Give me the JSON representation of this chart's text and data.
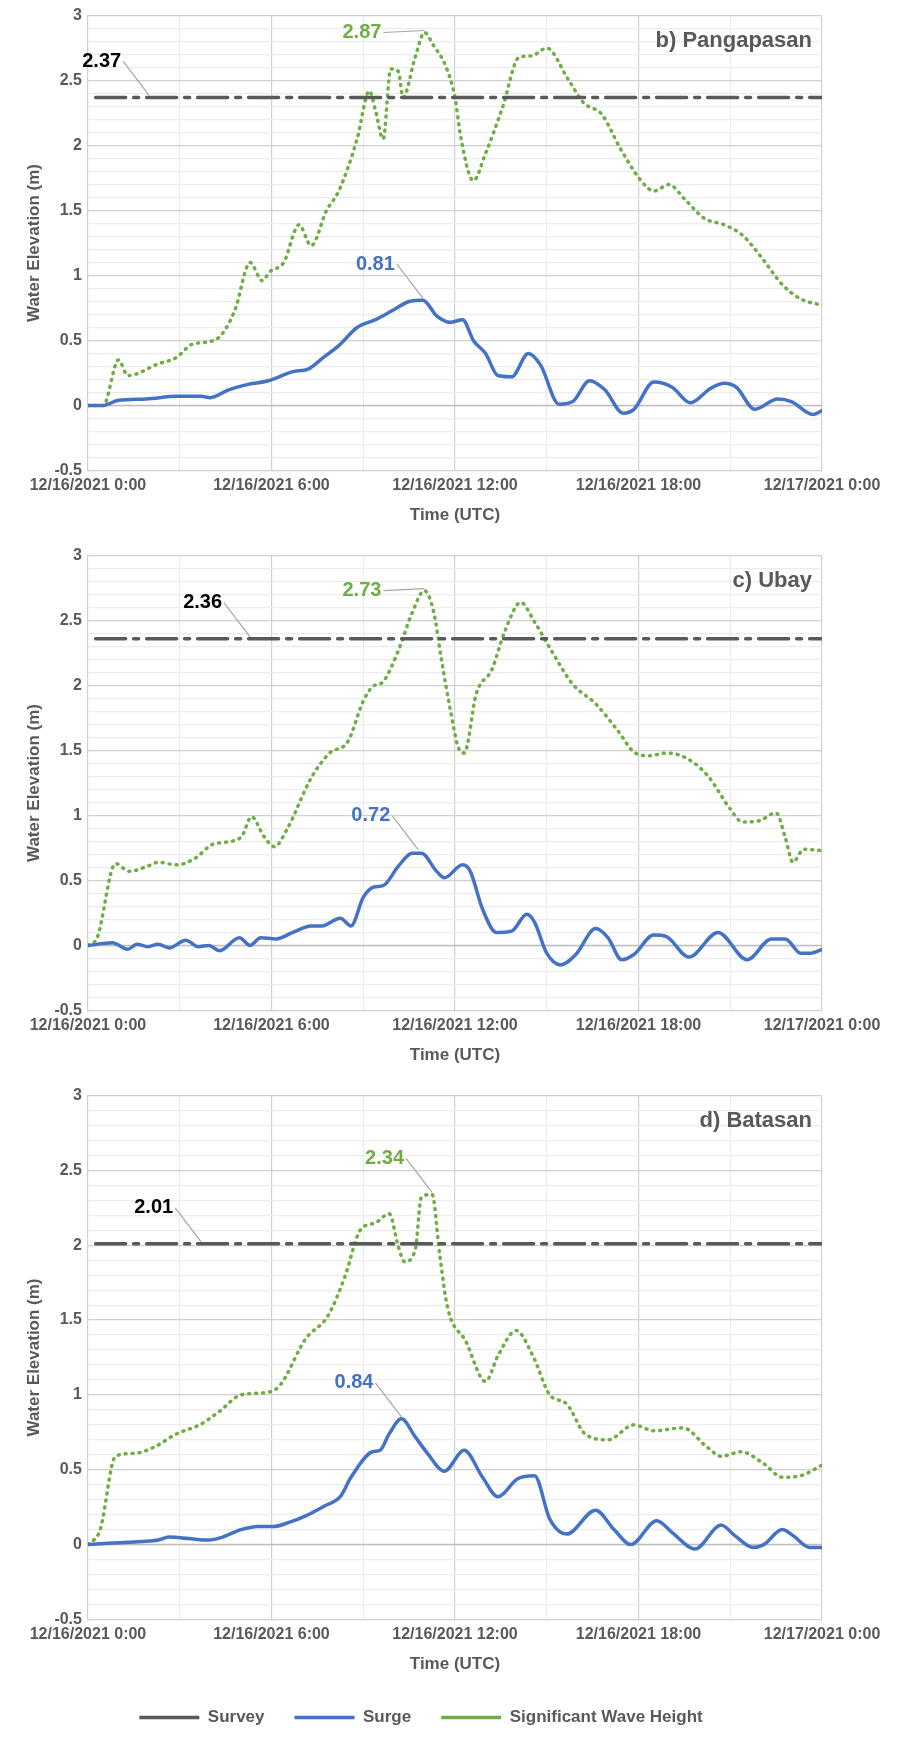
{
  "chart_data": [
    {
      "type": "line",
      "title": "b) Pangapasan",
      "xlabel": "Time (UTC)",
      "ylabel": "Water Elevation (m)",
      "xlim": [
        "2021-12-16T00:00",
        "2021-12-17T00:00"
      ],
      "ylim": [
        -0.5,
        3
      ],
      "xticks": [
        {
          "value": "2021-12-16T00:00",
          "label": "12/16/2021 0:00"
        },
        {
          "value": "2021-12-16T03:00",
          "label": null
        },
        {
          "value": "2021-12-16T06:00",
          "label": "12/16/2021 6:00"
        },
        {
          "value": "2021-12-16T09:00",
          "label": null
        },
        {
          "value": "2021-12-16T12:00",
          "label": "12/16/2021 12:00"
        },
        {
          "value": "2021-12-16T15:00",
          "label": null
        },
        {
          "value": "2021-12-16T18:00",
          "label": "12/16/2021 18:00"
        },
        {
          "value": "2021-12-16T21:00",
          "label": null
        },
        {
          "value": "2021-12-17T00:00",
          "label": "12/17/2021 0:00"
        }
      ],
      "yticks": [
        -0.5,
        {
          "value": -0.4,
          "label": null
        },
        {
          "value": -0.3,
          "label": null
        },
        {
          "value": -0.2,
          "label": null
        },
        {
          "value": -0.1,
          "label": null
        },
        0,
        {
          "value": 0.1,
          "label": null
        },
        {
          "value": 0.2,
          "label": null
        },
        {
          "value": 0.3,
          "label": null
        },
        {
          "value": 0.4,
          "label": null
        },
        0.5,
        {
          "value": 0.6,
          "label": null
        },
        {
          "value": 0.7,
          "label": null
        },
        {
          "value": 0.8,
          "label": null
        },
        {
          "value": 0.9,
          "label": null
        },
        1,
        {
          "value": 1.1,
          "label": null
        },
        {
          "value": 1.2,
          "label": null
        },
        {
          "value": 1.3,
          "label": null
        },
        {
          "value": 1.4,
          "label": null
        },
        1.5,
        {
          "value": 1.6,
          "label": null
        },
        {
          "value": 1.7,
          "label": null
        },
        {
          "value": 1.8,
          "label": null
        },
        {
          "value": 1.9,
          "label": null
        },
        2,
        {
          "value": 2.1,
          "label": null
        },
        {
          "value": 2.2,
          "label": null
        },
        {
          "value": 2.3,
          "label": null
        },
        {
          "value": 2.4,
          "label": null
        },
        2.5,
        {
          "value": 2.6,
          "label": null
        },
        {
          "value": 2.7,
          "label": null
        },
        {
          "value": 2.8,
          "label": null
        },
        {
          "value": 2.9,
          "label": null
        },
        3
      ],
      "grid": true,
      "marker": "none",
      "series": [
        {
          "color": "#595959",
          "line_style": "dashed",
          "x": [
            "2021-12-16T00:15",
            "2021-12-17T00:00"
          ],
          "values": [
            2.37,
            2.37
          ]
        },
        {
          "color": "#4472c4",
          "line_style": "solid",
          "x": [
            "2021-12-16T00:00",
            "2021-12-16T00:30",
            "2021-12-16T01:00",
            "2021-12-16T01:54",
            "2021-12-16T02:54",
            "2021-12-16T03:42",
            "2021-12-16T04:00",
            "2021-12-16T04:36",
            "2021-12-16T05:12",
            "2021-12-16T05:54",
            "2021-12-16T06:42",
            "2021-12-16T07:12",
            "2021-12-16T07:42",
            "2021-12-16T08:12",
            "2021-12-16T08:48",
            "2021-12-16T09:24",
            "2021-12-16T09:57",
            "2021-12-16T10:30",
            "2021-12-16T10:57",
            "2021-12-16T11:24",
            "2021-12-16T11:51",
            "2021-12-16T12:15",
            "2021-12-16T12:36",
            "2021-12-16T13:00",
            "2021-12-16T13:24",
            "2021-12-16T13:51",
            "2021-12-16T14:24",
            "2021-12-16T14:48",
            "2021-12-16T15:24",
            "2021-12-16T15:51",
            "2021-12-16T16:24",
            "2021-12-16T16:54",
            "2021-12-16T17:30",
            "2021-12-16T17:51",
            "2021-12-16T18:30",
            "2021-12-16T19:06",
            "2021-12-16T19:42",
            "2021-12-16T20:21",
            "2021-12-16T20:48",
            "2021-12-16T21:12",
            "2021-12-16T21:48",
            "2021-12-16T22:33",
            "2021-12-16T23:00",
            "2021-12-16T23:42",
            "2021-12-17T00:00"
          ],
          "values": [
            0,
            0,
            0.04,
            0.05,
            0.07,
            0.07,
            0.06,
            0.12,
            0.16,
            0.19,
            0.26,
            0.28,
            0.37,
            0.46,
            0.6,
            0.66,
            0.73,
            0.8,
            0.81,
            0.69,
            0.64,
            0.66,
            0.5,
            0.4,
            0.23,
            0.22,
            0.4,
            0.31,
            0.01,
            0.03,
            0.19,
            0.12,
            -0.06,
            -0.03,
            0.18,
            0.14,
            0.02,
            0.13,
            0.17,
            0.14,
            -0.03,
            0.05,
            0.03,
            -0.07,
            -0.04
          ]
        },
        {
          "color": "#70ad47",
          "line_style": "dotted",
          "x": [
            "2021-12-16T00:00",
            "2021-12-16T00:30",
            "2021-12-16T01:00",
            "2021-12-16T01:18",
            "2021-12-16T02:18",
            "2021-12-16T02:54",
            "2021-12-16T03:24",
            "2021-12-16T04:12",
            "2021-12-16T04:48",
            "2021-12-16T05:18",
            "2021-12-16T05:42",
            "2021-12-16T05:57",
            "2021-12-16T06:24",
            "2021-12-16T06:54",
            "2021-12-16T07:18",
            "2021-12-16T07:48",
            "2021-12-16T08:12",
            "2021-12-16T08:48",
            "2021-12-16T09:12",
            "2021-12-16T09:24",
            "2021-12-16T09:39",
            "2021-12-16T09:54",
            "2021-12-16T10:09",
            "2021-12-16T10:18",
            "2021-12-16T10:42",
            "2021-12-16T11:00",
            "2021-12-16T11:18",
            "2021-12-16T11:42",
            "2021-12-16T12:00",
            "2021-12-16T12:12",
            "2021-12-16T12:36",
            "2021-12-16T13:00",
            "2021-12-16T13:33",
            "2021-12-16T14:06",
            "2021-12-16T14:30",
            "2021-12-16T15:00",
            "2021-12-16T15:42",
            "2021-12-16T16:12",
            "2021-12-16T16:48",
            "2021-12-16T17:24",
            "2021-12-16T18:03",
            "2021-12-16T18:30",
            "2021-12-16T19:00",
            "2021-12-16T19:30",
            "2021-12-16T20:09",
            "2021-12-16T20:48",
            "2021-12-16T21:24",
            "2021-12-16T22:03",
            "2021-12-16T22:42",
            "2021-12-16T23:18",
            "2021-12-17T00:00"
          ],
          "values": [
            0,
            0,
            0.35,
            0.23,
            0.32,
            0.37,
            0.47,
            0.51,
            0.73,
            1.1,
            0.96,
            1.03,
            1.1,
            1.39,
            1.23,
            1.5,
            1.65,
            2.05,
            2.42,
            2.27,
            2.05,
            2.59,
            2.57,
            2.37,
            2.68,
            2.87,
            2.77,
            2.61,
            2.37,
            2.05,
            1.73,
            1.94,
            2.29,
            2.68,
            2.69,
            2.75,
            2.51,
            2.33,
            2.24,
            1.98,
            1.74,
            1.65,
            1.7,
            1.59,
            1.44,
            1.39,
            1.31,
            1.13,
            0.93,
            0.82,
            0.77
          ]
        }
      ],
      "annotations": [
        {
          "text": "2.37",
          "x": "2021-12-16T02:00",
          "y": 2.37
        },
        {
          "text": "2.87",
          "x": "2021-12-16T11:00",
          "y": 2.87
        },
        {
          "text": "0.81",
          "x": "2021-12-16T10:57",
          "y": 0.81
        }
      ]
    },
    {
      "type": "line",
      "title": "c) Ubay",
      "xlabel": "Time (UTC)",
      "ylabel": "Water Elevation (m)",
      "xlim": [
        "2021-12-16T00:00",
        "2021-12-17T00:00"
      ],
      "ylim": [
        -0.5,
        3
      ],
      "xticks": [
        {
          "value": "2021-12-16T00:00",
          "label": "12/16/2021 0:00"
        },
        {
          "value": "2021-12-16T03:00",
          "label": null
        },
        {
          "value": "2021-12-16T06:00",
          "label": "12/16/2021 6:00"
        },
        {
          "value": "2021-12-16T09:00",
          "label": null
        },
        {
          "value": "2021-12-16T12:00",
          "label": "12/16/2021 12:00"
        },
        {
          "value": "2021-12-16T15:00",
          "label": null
        },
        {
          "value": "2021-12-16T18:00",
          "label": "12/16/2021 18:00"
        },
        {
          "value": "2021-12-16T21:00",
          "label": null
        },
        {
          "value": "2021-12-17T00:00",
          "label": "12/17/2021 0:00"
        }
      ],
      "yticks": [
        -0.5,
        {
          "value": -0.4,
          "label": null
        },
        {
          "value": -0.3,
          "label": null
        },
        {
          "value": -0.2,
          "label": null
        },
        {
          "value": -0.1,
          "label": null
        },
        0,
        {
          "value": 0.1,
          "label": null
        },
        {
          "value": 0.2,
          "label": null
        },
        {
          "value": 0.3,
          "label": null
        },
        {
          "value": 0.4,
          "label": null
        },
        0.5,
        {
          "value": 0.6,
          "label": null
        },
        {
          "value": 0.7,
          "label": null
        },
        {
          "value": 0.8,
          "label": null
        },
        {
          "value": 0.9,
          "label": null
        },
        1,
        {
          "value": 1.1,
          "label": null
        },
        {
          "value": 1.2,
          "label": null
        },
        {
          "value": 1.3,
          "label": null
        },
        {
          "value": 1.4,
          "label": null
        },
        1.5,
        {
          "value": 1.6,
          "label": null
        },
        {
          "value": 1.7,
          "label": null
        },
        {
          "value": 1.8,
          "label": null
        },
        {
          "value": 1.9,
          "label": null
        },
        2,
        {
          "value": 2.1,
          "label": null
        },
        {
          "value": 2.2,
          "label": null
        },
        {
          "value": 2.3,
          "label": null
        },
        {
          "value": 2.4,
          "label": null
        },
        2.5,
        {
          "value": 2.6,
          "label": null
        },
        {
          "value": 2.7,
          "label": null
        },
        {
          "value": 2.8,
          "label": null
        },
        {
          "value": 2.9,
          "label": null
        },
        3
      ],
      "grid": true,
      "marker": "none",
      "series": [
        {
          "color": "#595959",
          "line_style": "dashed",
          "x": [
            "2021-12-16T00:15",
            "2021-12-17T00:00"
          ],
          "values": [
            2.36,
            2.36
          ]
        },
        {
          "color": "#4472c4",
          "line_style": "solid",
          "x": [
            "2021-12-16T00:00",
            "2021-12-16T00:48",
            "2021-12-16T01:18",
            "2021-12-16T01:36",
            "2021-12-16T01:57",
            "2021-12-16T02:18",
            "2021-12-16T02:39",
            "2021-12-16T03:12",
            "2021-12-16T03:36",
            "2021-12-16T03:57",
            "2021-12-16T04:18",
            "2021-12-16T04:57",
            "2021-12-16T05:18",
            "2021-12-16T05:39",
            "2021-12-16T06:09",
            "2021-12-16T06:42",
            "2021-12-16T07:18",
            "2021-12-16T07:39",
            "2021-12-16T08:15",
            "2021-12-16T08:36",
            "2021-12-16T09:00",
            "2021-12-16T09:21",
            "2021-12-16T09:39",
            "2021-12-16T10:09",
            "2021-12-16T10:36",
            "2021-12-16T10:54",
            "2021-12-16T11:24",
            "2021-12-16T11:39",
            "2021-12-16T12:15",
            "2021-12-16T12:30",
            "2021-12-16T12:54",
            "2021-12-16T13:21",
            "2021-12-16T13:51",
            "2021-12-16T14:21",
            "2021-12-16T14:36",
            "2021-12-16T15:00",
            "2021-12-16T15:27",
            "2021-12-16T15:57",
            "2021-12-16T16:36",
            "2021-12-16T17:00",
            "2021-12-16T17:27",
            "2021-12-16T17:51",
            "2021-12-16T18:30",
            "2021-12-16T18:54",
            "2021-12-16T19:39",
            "2021-12-16T20:36",
            "2021-12-16T21:33",
            "2021-12-16T22:21",
            "2021-12-16T22:48",
            "2021-12-16T23:18",
            "2021-12-16T23:39",
            "2021-12-17T00:00"
          ],
          "values": [
            0,
            0.02,
            -0.03,
            0.01,
            -0.01,
            0.01,
            -0.02,
            0.04,
            -0.01,
            0,
            -0.04,
            0.06,
            0,
            0.06,
            0.05,
            0.1,
            0.15,
            0.15,
            0.21,
            0.15,
            0.37,
            0.45,
            0.46,
            0.61,
            0.71,
            0.71,
            0.57,
            0.52,
            0.62,
            0.57,
            0.28,
            0.1,
            0.11,
            0.24,
            0.18,
            -0.06,
            -0.15,
            -0.07,
            0.13,
            0.06,
            -0.11,
            -0.07,
            0.08,
            0.07,
            -0.09,
            0.1,
            -0.11,
            0.05,
            0.05,
            -0.06,
            -0.06,
            -0.03
          ]
        },
        {
          "color": "#70ad47",
          "line_style": "dotted",
          "x": [
            "2021-12-16T00:00",
            "2021-12-16T00:18",
            "2021-12-16T00:54",
            "2021-12-16T01:21",
            "2021-12-16T01:57",
            "2021-12-16T02:18",
            "2021-12-16T02:54",
            "2021-12-16T03:30",
            "2021-12-16T04:06",
            "2021-12-16T05:00",
            "2021-12-16T05:21",
            "2021-12-16T05:45",
            "2021-12-16T06:06",
            "2021-12-16T06:30",
            "2021-12-16T07:18",
            "2021-12-16T07:54",
            "2021-12-16T08:30",
            "2021-12-16T09:00",
            "2021-12-16T09:18",
            "2021-12-16T09:39",
            "2021-12-16T10:09",
            "2021-12-16T10:36",
            "2021-12-16T11:00",
            "2021-12-16T11:18",
            "2021-12-16T11:33",
            "2021-12-16T11:51",
            "2021-12-16T12:06",
            "2021-12-16T12:18",
            "2021-12-16T12:42",
            "2021-12-16T13:12",
            "2021-12-16T13:39",
            "2021-12-16T14:09",
            "2021-12-16T14:36",
            "2021-12-16T15:12",
            "2021-12-16T15:51",
            "2021-12-16T16:36",
            "2021-12-16T17:18",
            "2021-12-16T17:54",
            "2021-12-16T18:21",
            "2021-12-16T18:54",
            "2021-12-16T19:30",
            "2021-12-16T20:15",
            "2021-12-16T21:00",
            "2021-12-16T21:24",
            "2021-12-16T21:57",
            "2021-12-16T22:30",
            "2021-12-16T22:48",
            "2021-12-16T23:03",
            "2021-12-16T23:24",
            "2021-12-17T00:00"
          ],
          "values": [
            0,
            0.06,
            0.63,
            0.57,
            0.61,
            0.64,
            0.62,
            0.67,
            0.78,
            0.83,
            0.99,
            0.84,
            0.76,
            0.89,
            1.29,
            1.48,
            1.57,
            1.88,
            1.99,
            2.03,
            2.27,
            2.56,
            2.73,
            2.57,
            2.21,
            1.81,
            1.53,
            1.48,
            1.94,
            2.12,
            2.43,
            2.64,
            2.49,
            2.25,
            2.01,
            1.86,
            1.66,
            1.48,
            1.46,
            1.48,
            1.45,
            1.31,
            1.05,
            0.95,
            0.96,
            1.02,
            0.83,
            0.64,
            0.74,
            0.73
          ]
        }
      ],
      "annotations": [
        {
          "text": "2.36",
          "x": "2021-12-16T05:18",
          "y": 2.36
        },
        {
          "text": "2.73",
          "x": "2021-12-16T11:00",
          "y": 2.73
        },
        {
          "text": "0.72",
          "x": "2021-12-16T10:48",
          "y": 0.72
        }
      ]
    },
    {
      "type": "line",
      "title": "d) Batasan",
      "xlabel": "Time (UTC)",
      "ylabel": "Water Elevation (m)",
      "xlim": [
        "2021-12-16T00:00",
        "2021-12-17T00:00"
      ],
      "ylim": [
        -0.5,
        3
      ],
      "xticks": [
        {
          "value": "2021-12-16T00:00",
          "label": "12/16/2021 0:00"
        },
        {
          "value": "2021-12-16T03:00",
          "label": null
        },
        {
          "value": "2021-12-16T06:00",
          "label": "12/16/2021 6:00"
        },
        {
          "value": "2021-12-16T09:00",
          "label": null
        },
        {
          "value": "2021-12-16T12:00",
          "label": "12/16/2021 12:00"
        },
        {
          "value": "2021-12-16T15:00",
          "label": null
        },
        {
          "value": "2021-12-16T18:00",
          "label": "12/16/2021 18:00"
        },
        {
          "value": "2021-12-16T21:00",
          "label": null
        },
        {
          "value": "2021-12-17T00:00",
          "label": "12/17/2021 0:00"
        }
      ],
      "yticks": [
        -0.5,
        {
          "value": -0.4,
          "label": null
        },
        {
          "value": -0.3,
          "label": null
        },
        {
          "value": -0.2,
          "label": null
        },
        {
          "value": -0.1,
          "label": null
        },
        0,
        {
          "value": 0.1,
          "label": null
        },
        {
          "value": 0.2,
          "label": null
        },
        {
          "value": 0.3,
          "label": null
        },
        {
          "value": 0.4,
          "label": null
        },
        0.5,
        {
          "value": 0.6,
          "label": null
        },
        {
          "value": 0.7,
          "label": null
        },
        {
          "value": 0.8,
          "label": null
        },
        {
          "value": 0.9,
          "label": null
        },
        1,
        {
          "value": 1.1,
          "label": null
        },
        {
          "value": 1.2,
          "label": null
        },
        {
          "value": 1.3,
          "label": null
        },
        {
          "value": 1.4,
          "label": null
        },
        1.5,
        {
          "value": 1.6,
          "label": null
        },
        {
          "value": 1.7,
          "label": null
        },
        {
          "value": 1.8,
          "label": null
        },
        {
          "value": 1.9,
          "label": null
        },
        2,
        {
          "value": 2.1,
          "label": null
        },
        {
          "value": 2.2,
          "label": null
        },
        {
          "value": 2.3,
          "label": null
        },
        {
          "value": 2.4,
          "label": null
        },
        2.5,
        {
          "value": 2.6,
          "label": null
        },
        {
          "value": 2.7,
          "label": null
        },
        {
          "value": 2.8,
          "label": null
        },
        {
          "value": 2.9,
          "label": null
        },
        3
      ],
      "grid": true,
      "marker": "none",
      "legend": "bottom",
      "series": [
        {
          "name": "Survey",
          "color": "#595959",
          "line_style": "dashed",
          "x": [
            "2021-12-16T00:15",
            "2021-12-17T00:00"
          ],
          "values": [
            2.01,
            2.01
          ]
        },
        {
          "name": "Surge",
          "color": "#4472c4",
          "line_style": "solid",
          "x": [
            "2021-12-16T00:00",
            "2021-12-16T00:48",
            "2021-12-16T01:45",
            "2021-12-16T02:18",
            "2021-12-16T02:39",
            "2021-12-16T03:18",
            "2021-12-16T03:57",
            "2021-12-16T04:24",
            "2021-12-16T05:00",
            "2021-12-16T05:33",
            "2021-12-16T06:03",
            "2021-12-16T06:36",
            "2021-12-16T07:06",
            "2021-12-16T07:45",
            "2021-12-16T08:15",
            "2021-12-16T08:36",
            "2021-12-16T09:18",
            "2021-12-16T09:33",
            "2021-12-16T09:51",
            "2021-12-16T10:15",
            "2021-12-16T10:42",
            "2021-12-16T11:06",
            "2021-12-16T11:39",
            "2021-12-16T12:18",
            "2021-12-16T12:54",
            "2021-12-16T13:24",
            "2021-12-16T14:03",
            "2021-12-16T14:36",
            "2021-12-16T15:06",
            "2021-12-16T15:39",
            "2021-12-16T16:36",
            "2021-12-16T17:12",
            "2021-12-16T17:45",
            "2021-12-16T18:36",
            "2021-12-16T19:06",
            "2021-12-16T19:51",
            "2021-12-16T20:42",
            "2021-12-16T21:09",
            "2021-12-16T21:45",
            "2021-12-16T22:06",
            "2021-12-16T22:42",
            "2021-12-16T23:03",
            "2021-12-16T23:36",
            "2021-12-17T00:00"
          ],
          "values": [
            0,
            0.01,
            0.02,
            0.03,
            0.05,
            0.04,
            0.03,
            0.05,
            0.1,
            0.12,
            0.12,
            0.15,
            0.19,
            0.26,
            0.32,
            0.45,
            0.62,
            0.63,
            0.74,
            0.84,
            0.72,
            0.61,
            0.49,
            0.63,
            0.45,
            0.32,
            0.44,
            0.46,
            0.17,
            0.07,
            0.23,
            0.1,
            0,
            0.16,
            0.08,
            -0.03,
            0.13,
            0.06,
            -0.02,
            0,
            0.1,
            0.06,
            -0.02,
            -0.02
          ]
        },
        {
          "name": "Significant Wave Height",
          "color": "#70ad47",
          "line_style": "dotted",
          "x": [
            "2021-12-16T00:00",
            "2021-12-16T00:24",
            "2021-12-16T00:54",
            "2021-12-16T01:33",
            "2021-12-16T02:09",
            "2021-12-16T02:54",
            "2021-12-16T03:39",
            "2021-12-16T04:18",
            "2021-12-16T05:00",
            "2021-12-16T05:57",
            "2021-12-16T06:18",
            "2021-12-16T07:06",
            "2021-12-16T07:51",
            "2021-12-16T08:24",
            "2021-12-16T08:54",
            "2021-12-16T09:24",
            "2021-12-16T09:51",
            "2021-12-16T10:09",
            "2021-12-16T10:21",
            "2021-12-16T10:42",
            "2021-12-16T10:54",
            "2021-12-16T11:15",
            "2021-12-16T11:30",
            "2021-12-16T11:45",
            "2021-12-16T12:21",
            "2021-12-16T13:00",
            "2021-12-16T13:24",
            "2021-12-16T14:00",
            "2021-12-16T14:33",
            "2021-12-16T15:06",
            "2021-12-16T15:39",
            "2021-12-16T16:15",
            "2021-12-16T17:00",
            "2021-12-16T17:51",
            "2021-12-16T18:30",
            "2021-12-16T19:27",
            "2021-12-16T20:15",
            "2021-12-16T20:42",
            "2021-12-16T21:21",
            "2021-12-16T22:06",
            "2021-12-16T22:42",
            "2021-12-16T23:18",
            "2021-12-17T00:00"
          ],
          "values": [
            0,
            0.1,
            0.59,
            0.61,
            0.65,
            0.74,
            0.8,
            0.89,
            1,
            1.02,
            1.07,
            1.37,
            1.53,
            1.79,
            2.1,
            2.15,
            2.21,
            1.99,
            1.89,
            1.97,
            2.32,
            2.34,
            1.94,
            1.59,
            1.36,
            1.09,
            1.26,
            1.43,
            1.26,
            1,
            0.94,
            0.74,
            0.7,
            0.8,
            0.76,
            0.78,
            0.65,
            0.59,
            0.62,
            0.54,
            0.45,
            0.46,
            0.53
          ]
        }
      ],
      "annotations": [
        {
          "text": "2.01",
          "x": "2021-12-16T03:42",
          "y": 2.01
        },
        {
          "text": "2.34",
          "x": "2021-12-16T11:15",
          "y": 2.34
        },
        {
          "text": "0.84",
          "x": "2021-12-16T10:15",
          "y": 0.84
        }
      ]
    }
  ]
}
